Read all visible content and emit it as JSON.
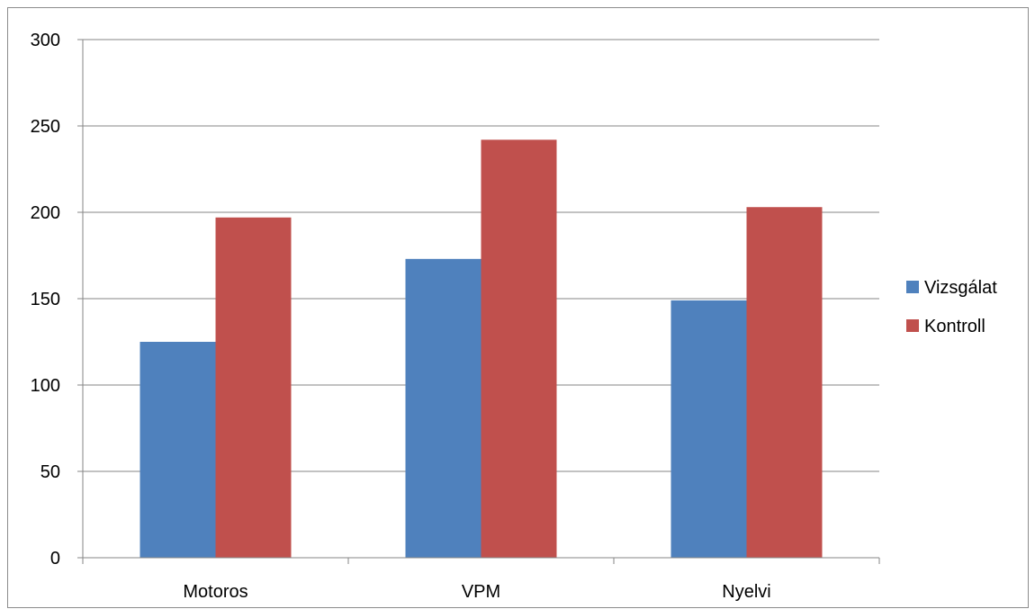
{
  "chart_data": {
    "type": "bar",
    "title": "",
    "xlabel": "",
    "ylabel": "",
    "categories": [
      "Motoros",
      "VPM",
      "Nyelvi"
    ],
    "series": [
      {
        "name": "Vizsgálat",
        "values": [
          125,
          173,
          149
        ],
        "color": "#4F81BD"
      },
      {
        "name": "Kontroll",
        "values": [
          197,
          242,
          203
        ],
        "color": "#C0504D"
      }
    ],
    "ylim": [
      0,
      300
    ],
    "yticks": [
      0,
      50,
      100,
      150,
      200,
      250,
      300
    ],
    "grid": true,
    "legend_position": "right"
  }
}
